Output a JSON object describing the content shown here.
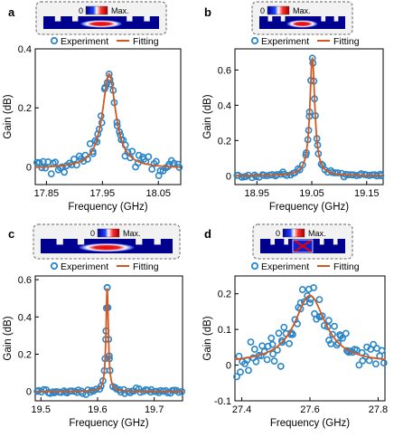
{
  "colors": {
    "experiment": "#2a86c8",
    "fitting": "#d4581e",
    "field_dark": "#00008f",
    "field_mid": "#0b1fd4",
    "field_hot": "#e60000",
    "inset_border": "#666666"
  },
  "legend": {
    "experiment": "Experiment",
    "fitting": "Fitting"
  },
  "colorbar": {
    "min": "0",
    "max": "Max."
  },
  "chart_data": [
    {
      "panel": "a",
      "type": "scatter",
      "xlabel": "Frequency  (GHz)",
      "ylabel": "Gain  (dB)",
      "xlim": [
        17.83,
        18.09
      ],
      "ylim": [
        -0.06,
        0.4
      ],
      "xticks": [
        17.85,
        17.95,
        18.05
      ],
      "xtick_labels": [
        "17.85",
        "17.95",
        "18.05"
      ],
      "yticks": [
        0,
        0.2,
        0.4
      ],
      "ytick_labels": [
        "0",
        "0.2",
        "0.4"
      ],
      "fit": {
        "model": "lorentzian",
        "f0": 17.962,
        "hwhm": 0.0145,
        "amp": 0.32,
        "base": -0.005
      },
      "noise": 0.015,
      "n_points": 62,
      "series": [
        {
          "name": "Experiment"
        },
        {
          "name": "Fitting"
        }
      ]
    },
    {
      "panel": "b",
      "type": "scatter",
      "xlabel": "Frequency  (GHz)",
      "ylabel": "Gain  (dB)",
      "xlim": [
        18.91,
        19.18
      ],
      "ylim": [
        -0.05,
        0.72
      ],
      "xticks": [
        18.95,
        19.05,
        19.15
      ],
      "xtick_labels": [
        "18.95",
        "19.05",
        "19.15"
      ],
      "yticks": [
        0,
        0.2,
        0.4,
        0.6
      ],
      "ytick_labels": [
        "0",
        "0.2",
        "0.4",
        "0.6"
      ],
      "fit": {
        "model": "lorentzian",
        "f0": 19.051,
        "hwhm": 0.0055,
        "amp": 0.67,
        "base": 0.0
      },
      "noise": 0.006,
      "n_points": 58,
      "series": [
        {
          "name": "Experiment"
        },
        {
          "name": "Fitting"
        }
      ]
    },
    {
      "panel": "c",
      "type": "scatter",
      "xlabel": "Frequency  (GHz)",
      "ylabel": "Gain  (dB)",
      "xlim": [
        19.49,
        19.75
      ],
      "ylim": [
        -0.05,
        0.62
      ],
      "xticks": [
        19.5,
        19.6,
        19.7
      ],
      "xtick_labels": [
        "19.5",
        "19.6",
        "19.7"
      ],
      "yticks": [
        0,
        0.2,
        0.4,
        0.6
      ],
      "ytick_labels": [
        "0",
        "0.2",
        "0.4",
        "0.6"
      ],
      "fit": {
        "model": "lorentzian",
        "f0": 19.617,
        "hwhm": 0.0025,
        "amp": 0.56,
        "base": 0.0
      },
      "noise": 0.006,
      "n_points": 66,
      "series": [
        {
          "name": "Experiment"
        },
        {
          "name": "Fitting"
        }
      ]
    },
    {
      "panel": "d",
      "type": "scatter",
      "xlabel": "Frequency  (GHz)",
      "ylabel": "Gain  (dB)",
      "xlim": [
        27.38,
        27.82
      ],
      "ylim": [
        -0.1,
        0.25
      ],
      "xticks": [
        27.4,
        27.6,
        27.8
      ],
      "xtick_labels": [
        "27.4",
        "27.6",
        "27.8"
      ],
      "yticks": [
        -0.1,
        0,
        0.1,
        0.2
      ],
      "ytick_labels": [
        "-0.1",
        "0",
        "0.1",
        "0.2"
      ],
      "fit": {
        "model": "lorentzian",
        "f0": 27.6,
        "hwhm": 0.055,
        "amp": 0.19,
        "base": 0.005
      },
      "noise": 0.022,
      "n_points": 74,
      "series": [
        {
          "name": "Experiment"
        },
        {
          "name": "Fitting"
        }
      ]
    }
  ]
}
